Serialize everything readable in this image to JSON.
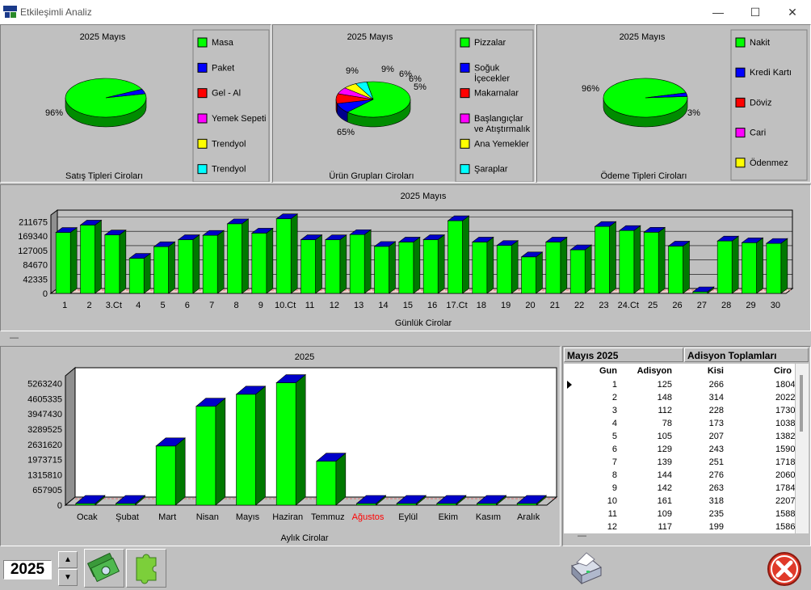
{
  "window": {
    "title": "Etkileşimli Analiz",
    "minimize": "—",
    "maximize": "☐",
    "close": "✕"
  },
  "pie_charts": [
    {
      "title": "2025 Mayıs",
      "caption": "Satış Tipleri Ciroları",
      "legend": [
        {
          "label": "Masa",
          "color": "#00ff00"
        },
        {
          "label": "Paket",
          "color": "#0000ff"
        },
        {
          "label": "Gel - Al",
          "color": "#ff0000"
        },
        {
          "label": "Yemek Sepeti",
          "color": "#ff00ff"
        },
        {
          "label": "Trendyol",
          "color": "#ffff00"
        },
        {
          "label": "Trendyol",
          "color": "#00ffff"
        }
      ],
      "slice_labels": [
        "96%"
      ]
    },
    {
      "title": "2025 Mayıs",
      "caption": "Ürün Grupları Ciroları",
      "legend": [
        {
          "label": "Pizzalar",
          "color": "#00ff00"
        },
        {
          "label": "Soğuk İçecekler",
          "color": "#0000ff"
        },
        {
          "label": "Makarnalar",
          "color": "#ff0000"
        },
        {
          "label": "Başlangıçlar ve Atıştırmalık",
          "color": "#ff00ff"
        },
        {
          "label": "Ana Yemekler",
          "color": "#ffff00"
        },
        {
          "label": "Şaraplar",
          "color": "#00ffff"
        }
      ],
      "slice_labels": [
        "65%",
        "9%",
        "9%",
        "6%",
        "6%",
        "5%"
      ]
    },
    {
      "title": "2025 Mayıs",
      "caption": "Ödeme Tipleri Ciroları",
      "legend": [
        {
          "label": "Nakit",
          "color": "#00ff00"
        },
        {
          "label": "Kredi Kartı",
          "color": "#0000ff"
        },
        {
          "label": "Döviz",
          "color": "#ff0000"
        },
        {
          "label": "Cari",
          "color": "#ff00ff"
        },
        {
          "label": "Ödenmez",
          "color": "#ffff00"
        }
      ],
      "slice_labels": [
        "96%",
        "3%"
      ]
    }
  ],
  "chart_data": [
    {
      "type": "pie",
      "title": "2025 Mayıs",
      "xlabel": "Satış Tipleri Ciroları",
      "categories": [
        "Masa",
        "Paket",
        "Gel - Al",
        "Yemek Sepeti",
        "Trendyol",
        "Trendyol"
      ],
      "values": [
        96,
        4,
        0,
        0,
        0,
        0
      ]
    },
    {
      "type": "pie",
      "title": "2025 Mayıs",
      "xlabel": "Ürün Grupları Ciroları",
      "categories": [
        "Pizzalar",
        "Soğuk İçecekler",
        "Makarnalar",
        "Başlangıçlar ve Atıştırmalık",
        "Ana Yemekler",
        "Şaraplar"
      ],
      "values": [
        65,
        9,
        9,
        6,
        6,
        5
      ]
    },
    {
      "type": "pie",
      "title": "2025 Mayıs",
      "xlabel": "Ödeme Tipleri Ciroları",
      "categories": [
        "Nakit",
        "Kredi Kartı",
        "Döviz",
        "Cari",
        "Ödenmez"
      ],
      "values": [
        96,
        3,
        0,
        0,
        0
      ]
    },
    {
      "type": "bar",
      "title": "2025 Mayıs",
      "xlabel": "Günlük Cirolar",
      "categories": [
        "1",
        "2",
        "3.Ct",
        "4",
        "5",
        "6",
        "7",
        "8",
        "9",
        "10.Ct",
        "11",
        "12",
        "13",
        "14",
        "15",
        "16",
        "17.Ct",
        "18",
        "19",
        "20",
        "21",
        "22",
        "23",
        "24.Ct",
        "25",
        "26",
        "27",
        "28",
        "29",
        "30"
      ],
      "values": [
        180400,
        202200,
        173000,
        103800,
        138200,
        159000,
        171800,
        206000,
        178400,
        220700,
        158800,
        158600,
        174000,
        139000,
        152000,
        159000,
        215000,
        152000,
        142000,
        108000,
        152000,
        129000,
        198000,
        186000,
        181000,
        140000,
        0,
        155000,
        150000,
        148000
      ],
      "yticks": [
        0,
        42335,
        84670,
        127005,
        169340,
        211675
      ],
      "ylim": [
        0,
        232000
      ]
    },
    {
      "type": "bar",
      "title": "2025",
      "xlabel": "Aylık Cirolar",
      "categories": [
        "Ocak",
        "Şubat",
        "Mart",
        "Nisan",
        "Mayıs",
        "Haziran",
        "Temmuz",
        "Ağustos",
        "Eylül",
        "Ekim",
        "Kasım",
        "Aralık"
      ],
      "values": [
        0,
        0,
        2560000,
        4280000,
        4800000,
        5300000,
        1900000,
        0,
        0,
        0,
        0,
        0
      ],
      "yticks": [
        0,
        657905,
        1315810,
        1973715,
        2631620,
        3289525,
        3947430,
        4605335,
        5263240
      ],
      "ylim": [
        0,
        5600000
      ],
      "highlight_category": "Ağustos",
      "highlight_color": "#ff0000"
    }
  ],
  "grid": {
    "title_left": "Mayıs 2025",
    "title_right": "Adisyon Toplamları",
    "columns": [
      "Gun",
      "Adisyon",
      "Kisi",
      "Ciro"
    ],
    "rows": [
      [
        "1",
        "125",
        "266",
        "1804"
      ],
      [
        "2",
        "148",
        "314",
        "2022"
      ],
      [
        "3",
        "112",
        "228",
        "1730"
      ],
      [
        "4",
        "78",
        "173",
        "1038"
      ],
      [
        "5",
        "105",
        "207",
        "1382"
      ],
      [
        "6",
        "129",
        "243",
        "1590"
      ],
      [
        "7",
        "139",
        "251",
        "1718"
      ],
      [
        "8",
        "144",
        "276",
        "2060"
      ],
      [
        "9",
        "142",
        "263",
        "1784"
      ],
      [
        "10",
        "161",
        "318",
        "2207"
      ],
      [
        "11",
        "109",
        "235",
        "1588"
      ],
      [
        "12",
        "117",
        "199",
        "1586"
      ]
    ],
    "separator": "—"
  },
  "bottom": {
    "year": "2025",
    "up": "▲",
    "down": "▼"
  },
  "splitter": "—"
}
